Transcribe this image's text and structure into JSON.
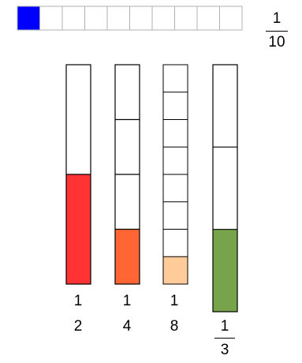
{
  "strip": {
    "cells": 10,
    "filled": 1,
    "fill_color": "#0000ff",
    "label": {
      "numerator": "1",
      "denominator": "10"
    }
  },
  "bars": [
    {
      "parts": 2,
      "filled": 1,
      "fill_color": "#ff3333",
      "numerator": "1",
      "denominator": "2",
      "fraction_line": false
    },
    {
      "parts": 4,
      "filled": 1,
      "fill_color": "#ff6633",
      "numerator": "1",
      "denominator": "4",
      "fraction_line": false
    },
    {
      "parts": 8,
      "filled": 1,
      "fill_color": "#ffcc99",
      "numerator": "1",
      "denominator": "8",
      "fraction_line": false
    },
    {
      "parts": 3,
      "filled": 1,
      "fill_color": "#77a34a",
      "numerator": "1",
      "denominator": "3",
      "fraction_line": true
    }
  ]
}
